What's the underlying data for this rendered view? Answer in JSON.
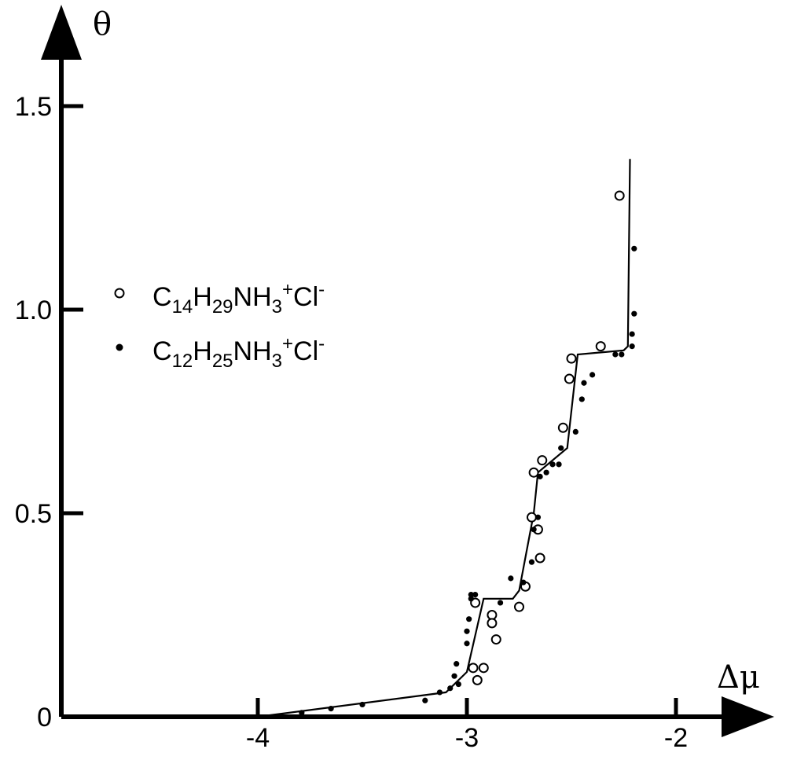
{
  "chart_data": {
    "type": "scatter",
    "xlabel": "Δμ",
    "ylabel": "θ",
    "xlim": [
      -4.95,
      -1.6
    ],
    "ylim": [
      0,
      1.65
    ],
    "x_ticks": [
      -4,
      -3,
      -2
    ],
    "y_ticks": [
      0,
      0.5,
      1.0,
      1.5
    ],
    "x_tick_labels": [
      "-4",
      "-3",
      "-2"
    ],
    "y_tick_labels": [
      "0",
      "0.5",
      "1.0",
      "1.5"
    ],
    "grid": false,
    "legend_placement": "left",
    "series": [
      {
        "name": "C14H29NH3+Cl-",
        "legend": {
          "base1": "C",
          "sub1": "14",
          "base2": "H",
          "sub2": "29",
          "base3": "NH",
          "sub3": "3",
          "sup1": "+",
          "base4": "Cl",
          "sup2": "-"
        },
        "marker": "open-circle",
        "points": [
          [
            -2.27,
            1.28
          ],
          [
            -2.36,
            0.91
          ],
          [
            -2.5,
            0.88
          ],
          [
            -2.51,
            0.83
          ],
          [
            -2.54,
            0.71
          ],
          [
            -2.64,
            0.63
          ],
          [
            -2.68,
            0.6
          ],
          [
            -2.69,
            0.49
          ],
          [
            -2.66,
            0.46
          ],
          [
            -2.65,
            0.39
          ],
          [
            -2.72,
            0.32
          ],
          [
            -2.75,
            0.27
          ],
          [
            -2.88,
            0.25
          ],
          [
            -2.88,
            0.23
          ],
          [
            -2.86,
            0.19
          ],
          [
            -2.92,
            0.12
          ],
          [
            -2.97,
            0.12
          ],
          [
            -2.95,
            0.09
          ],
          [
            -2.96,
            0.28
          ]
        ]
      },
      {
        "name": "C12H25NH3+Cl-",
        "legend": {
          "base1": "C",
          "sub1": "12",
          "base2": "H",
          "sub2": "25",
          "base3": "NH",
          "sub3": "3",
          "sup1": "+",
          "base4": "Cl",
          "sup2": "-"
        },
        "marker": "filled-circle",
        "points": [
          [
            -2.2,
            1.15
          ],
          [
            -2.2,
            0.99
          ],
          [
            -2.21,
            0.94
          ],
          [
            -2.21,
            0.91
          ],
          [
            -2.26,
            0.89
          ],
          [
            -2.29,
            0.89
          ],
          [
            -2.4,
            0.84
          ],
          [
            -2.44,
            0.82
          ],
          [
            -2.45,
            0.78
          ],
          [
            -2.48,
            0.7
          ],
          [
            -2.55,
            0.66
          ],
          [
            -2.56,
            0.62
          ],
          [
            -2.59,
            0.62
          ],
          [
            -2.62,
            0.6
          ],
          [
            -2.65,
            0.59
          ],
          [
            -2.66,
            0.49
          ],
          [
            -2.68,
            0.46
          ],
          [
            -2.69,
            0.38
          ],
          [
            -2.73,
            0.33
          ],
          [
            -2.79,
            0.34
          ],
          [
            -2.84,
            0.28
          ],
          [
            -2.96,
            0.3
          ],
          [
            -2.98,
            0.29
          ],
          [
            -2.99,
            0.24
          ],
          [
            -3.0,
            0.21
          ],
          [
            -3.0,
            0.18
          ],
          [
            -2.98,
            0.3
          ],
          [
            -3.05,
            0.13
          ],
          [
            -3.06,
            0.1
          ],
          [
            -3.04,
            0.08
          ],
          [
            -3.08,
            0.07
          ],
          [
            -3.13,
            0.06
          ],
          [
            -3.2,
            0.04
          ],
          [
            -3.5,
            0.03
          ],
          [
            -3.65,
            0.02
          ],
          [
            -3.79,
            0.01
          ]
        ]
      }
    ],
    "fit_line": [
      [
        -4.0,
        0.0
      ],
      [
        -3.1,
        0.06
      ],
      [
        -3.0,
        0.11
      ],
      [
        -2.92,
        0.29
      ],
      [
        -2.78,
        0.29
      ],
      [
        -2.75,
        0.31
      ],
      [
        -2.68,
        0.5
      ],
      [
        -2.66,
        0.6
      ],
      [
        -2.52,
        0.66
      ],
      [
        -2.47,
        0.89
      ],
      [
        -2.25,
        0.9
      ],
      [
        -2.23,
        0.91
      ],
      [
        -2.22,
        1.37
      ]
    ]
  }
}
